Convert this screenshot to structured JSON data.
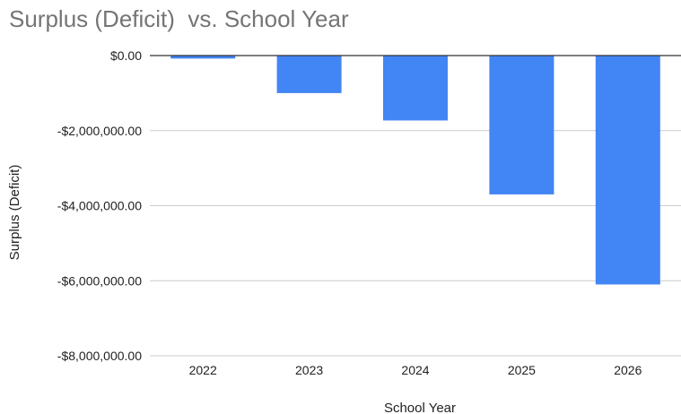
{
  "chart_data": {
    "type": "bar",
    "title": "Surplus (Deficit)  vs. School Year",
    "xlabel": "School Year",
    "ylabel": "Surplus (Deficit)",
    "categories": [
      "2022",
      "2023",
      "2024",
      "2025",
      "2026"
    ],
    "values": [
      -80000,
      -1000000,
      -1730000,
      -3700000,
      -6100000
    ],
    "ylim": [
      -8000000,
      0
    ],
    "yticks": [
      {
        "value": 0,
        "label": "$0.00"
      },
      {
        "value": -2000000,
        "label": "-$2,000,000.00"
      },
      {
        "value": -4000000,
        "label": "-$4,000,000.00"
      },
      {
        "value": -6000000,
        "label": "-$6,000,000.00"
      },
      {
        "value": -8000000,
        "label": "-$8,000,000.00"
      }
    ],
    "grid": true,
    "legend": "none",
    "colors": {
      "bar": "#4285f4",
      "grid": "#cccccc",
      "zero_line": "#333333"
    }
  }
}
